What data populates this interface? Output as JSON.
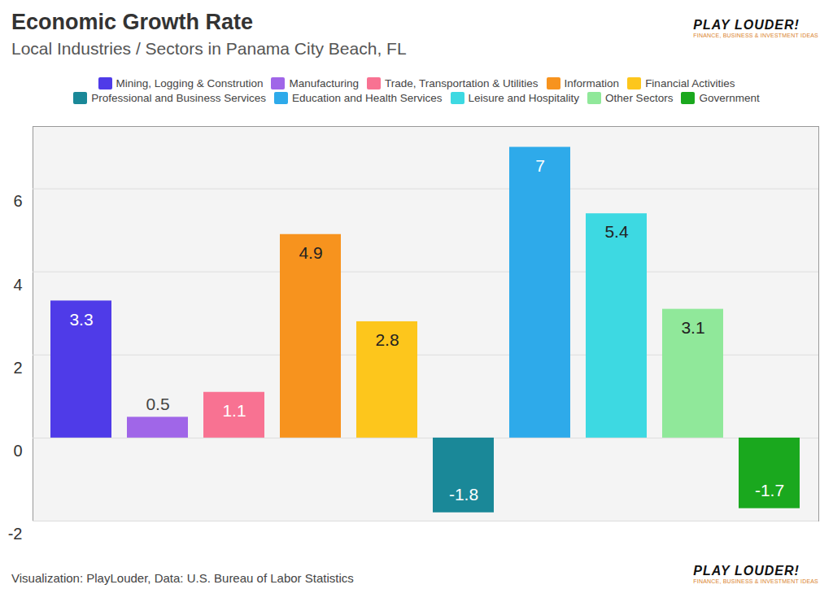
{
  "chart_data": {
    "type": "bar",
    "title": "Economic Growth Rate",
    "subtitle": "Local Industries / Sectors in Panama City Beach, FL",
    "caption": "Visualization: PlayLouder, Data: U.S. Bureau of Labor Statistics",
    "annotations": [
      "PLAY LOUDER!",
      "FINANCE, BUSINESS & INVESTMENT IDEAS"
    ],
    "categories": [
      "Mining, Logging & Constrution",
      "Manufacturing",
      "Trade, Transportation & Utilities",
      "Information",
      "Financial Activities",
      "Professional and Business Services",
      "Education and Health Services",
      "Leisure and Hospitality",
      "Other Sectors",
      "Government"
    ],
    "values": [
      3.3,
      0.5,
      1.1,
      4.9,
      2.8,
      -1.8,
      7,
      5.4,
      3.1,
      -1.7
    ],
    "colors": [
      "#4f3be8",
      "#a066e8",
      "#f87292",
      "#f7931e",
      "#fdc61c",
      "#1a8898",
      "#2eaaea",
      "#3dd9e2",
      "#90e89a",
      "#1aa81e"
    ],
    "ylim": [
      -2,
      7.5
    ],
    "yticks": [
      -2,
      0,
      2,
      4,
      6
    ],
    "grid": true,
    "legend": "top",
    "data_labels": true,
    "tick_labels": "y"
  }
}
